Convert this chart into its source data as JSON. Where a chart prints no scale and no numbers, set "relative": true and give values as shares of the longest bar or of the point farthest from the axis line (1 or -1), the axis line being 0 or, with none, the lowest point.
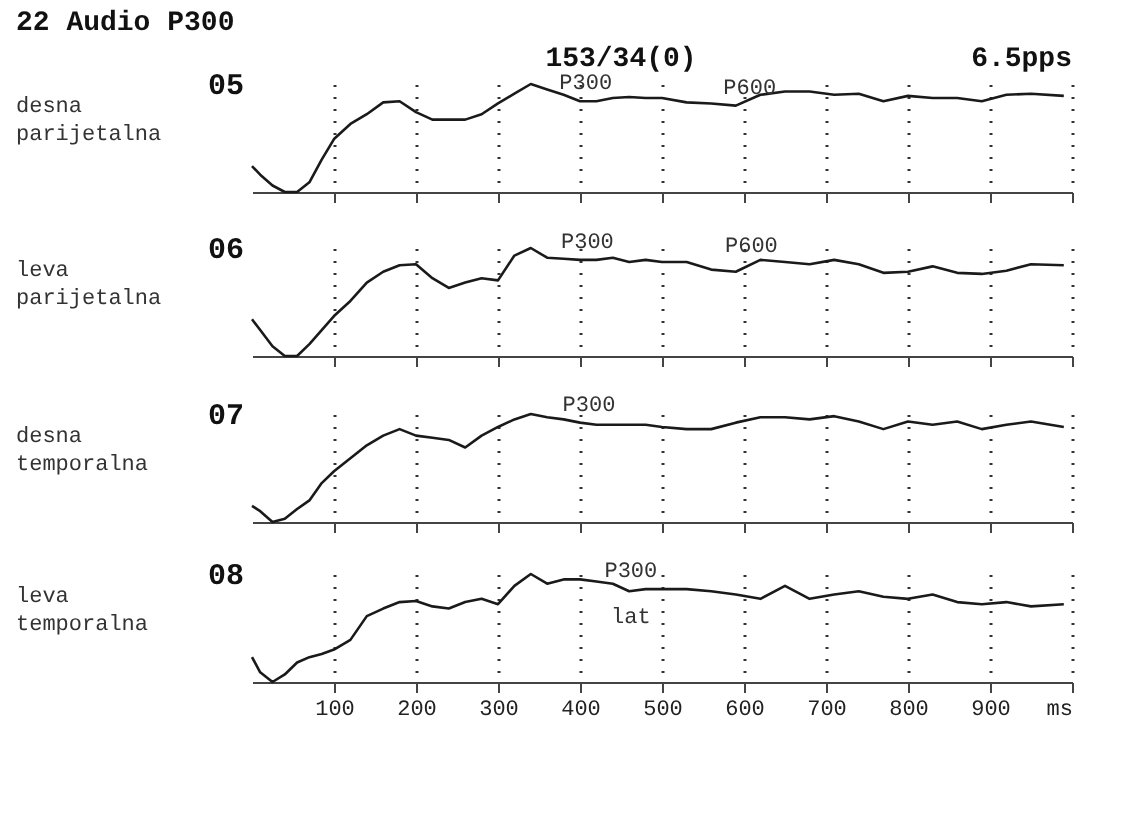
{
  "chart_data": [
    {
      "type": "line",
      "title": "22 Audio P300",
      "ylabel": "desna parijetalna",
      "relative": true,
      "xlim": [
        0,
        1000
      ],
      "xticks": [
        100,
        200,
        300,
        400,
        500,
        600,
        700,
        800,
        900,
        1000
      ],
      "grid": "x",
      "tick_labels": false,
      "annotations": [
        "153/34(0)",
        "6.5pps",
        {
          "text": "P300",
          "x": 407,
          "y": 0.84
        },
        {
          "text": "P600",
          "x": 607,
          "y": 0.8
        }
      ],
      "x": [
        0,
        10,
        25,
        40,
        55,
        70,
        85,
        100,
        120,
        140,
        160,
        180,
        200,
        220,
        240,
        260,
        280,
        300,
        320,
        340,
        360,
        380,
        400,
        420,
        440,
        460,
        480,
        500,
        530,
        560,
        590,
        620,
        650,
        680,
        710,
        740,
        770,
        800,
        830,
        860,
        890,
        920,
        950,
        990
      ],
      "series": [
        {
          "name": "05",
          "color": "#1a1a1a",
          "values": [
            0.24,
            0.16,
            0.06,
            0,
            0,
            0.09,
            0.3,
            0.49,
            0.63,
            0.72,
            0.83,
            0.84,
            0.74,
            0.67,
            0.67,
            0.67,
            0.72,
            0.82,
            0.91,
            1,
            0.95,
            0.9,
            0.84,
            0.84,
            0.87,
            0.88,
            0.87,
            0.87,
            0.83,
            0.82,
            0.8,
            0.9,
            0.93,
            0.93,
            0.9,
            0.91,
            0.84,
            0.89,
            0.87,
            0.87,
            0.84,
            0.9,
            0.91,
            0.89
          ]
        }
      ]
    },
    {
      "type": "line",
      "ylabel": "leva parijetalna",
      "relative": true,
      "xlim": [
        0,
        1000
      ],
      "xticks": [
        100,
        200,
        300,
        400,
        500,
        600,
        700,
        800,
        900,
        1000
      ],
      "grid": "x",
      "tick_labels": false,
      "annotations": [
        {
          "text": "P300",
          "x": 409,
          "y": 0.89
        },
        {
          "text": "P600",
          "x": 609,
          "y": 0.85
        }
      ],
      "x": [
        0,
        10,
        25,
        40,
        55,
        70,
        85,
        100,
        120,
        140,
        160,
        180,
        200,
        220,
        240,
        260,
        280,
        300,
        320,
        340,
        360,
        380,
        400,
        420,
        440,
        460,
        480,
        500,
        530,
        560,
        590,
        620,
        650,
        680,
        710,
        740,
        770,
        800,
        830,
        860,
        890,
        920,
        950,
        990
      ],
      "series": [
        {
          "name": "06",
          "color": "#1a1a1a",
          "values": [
            0.34,
            0.24,
            0.09,
            0,
            0,
            0.11,
            0.24,
            0.37,
            0.51,
            0.68,
            0.78,
            0.84,
            0.85,
            0.72,
            0.63,
            0.68,
            0.72,
            0.7,
            0.93,
            1,
            0.91,
            0.9,
            0.89,
            0.89,
            0.91,
            0.87,
            0.89,
            0.87,
            0.87,
            0.8,
            0.78,
            0.89,
            0.87,
            0.85,
            0.89,
            0.85,
            0.77,
            0.78,
            0.83,
            0.77,
            0.76,
            0.79,
            0.85,
            0.84
          ]
        }
      ]
    },
    {
      "type": "line",
      "ylabel": "desna temporalna",
      "relative": true,
      "xlim": [
        0,
        1000
      ],
      "xticks": [
        100,
        200,
        300,
        400,
        500,
        600,
        700,
        800,
        900,
        1000
      ],
      "grid": "x",
      "tick_labels": false,
      "annotations": [
        {
          "text": "P300",
          "x": 411,
          "y": 0.92
        }
      ],
      "x": [
        0,
        10,
        25,
        40,
        55,
        70,
        85,
        100,
        120,
        140,
        160,
        180,
        200,
        220,
        240,
        260,
        280,
        300,
        320,
        340,
        360,
        380,
        400,
        420,
        440,
        460,
        480,
        500,
        530,
        560,
        590,
        620,
        650,
        680,
        710,
        740,
        770,
        800,
        830,
        860,
        890,
        920,
        950,
        990
      ],
      "series": [
        {
          "name": "07",
          "color": "#1a1a1a",
          "values": [
            0.15,
            0.1,
            0,
            0.03,
            0.12,
            0.2,
            0.36,
            0.47,
            0.59,
            0.71,
            0.8,
            0.86,
            0.8,
            0.78,
            0.76,
            0.69,
            0.8,
            0.88,
            0.95,
            1,
            0.97,
            0.95,
            0.92,
            0.9,
            0.9,
            0.9,
            0.9,
            0.88,
            0.86,
            0.86,
            0.92,
            0.97,
            0.97,
            0.95,
            0.98,
            0.93,
            0.86,
            0.93,
            0.9,
            0.93,
            0.86,
            0.9,
            0.93,
            0.88
          ]
        }
      ]
    },
    {
      "type": "line",
      "ylabel": "leva temporalna",
      "relative": true,
      "xlim": [
        0,
        1000
      ],
      "xticks": [
        100,
        200,
        300,
        400,
        500,
        600,
        700,
        800,
        900,
        {
          "value": 1000,
          "label": "ms"
        }
      ],
      "grid": "x",
      "tick_labels": "x",
      "annotations": [
        {
          "text": "P300",
          "x": 462,
          "y": 0.86
        },
        {
          "text": "lat",
          "x": 462,
          "y": 0.86
        }
      ],
      "x": [
        0,
        10,
        25,
        40,
        55,
        70,
        85,
        100,
        120,
        140,
        160,
        180,
        200,
        220,
        240,
        260,
        280,
        300,
        320,
        340,
        360,
        380,
        400,
        420,
        440,
        460,
        480,
        500,
        530,
        560,
        590,
        620,
        650,
        680,
        710,
        740,
        770,
        800,
        830,
        860,
        890,
        920,
        950,
        990
      ],
      "series": [
        {
          "name": "08",
          "color": "#1a1a1a",
          "values": [
            0.23,
            0.09,
            0,
            0.07,
            0.18,
            0.23,
            0.26,
            0.3,
            0.39,
            0.61,
            0.68,
            0.74,
            0.75,
            0.7,
            0.68,
            0.74,
            0.77,
            0.72,
            0.89,
            1,
            0.91,
            0.95,
            0.95,
            0.93,
            0.91,
            0.84,
            0.86,
            0.86,
            0.86,
            0.84,
            0.81,
            0.77,
            0.89,
            0.77,
            0.81,
            0.84,
            0.79,
            0.77,
            0.81,
            0.74,
            0.72,
            0.74,
            0.7,
            0.72
          ]
        }
      ]
    }
  ]
}
